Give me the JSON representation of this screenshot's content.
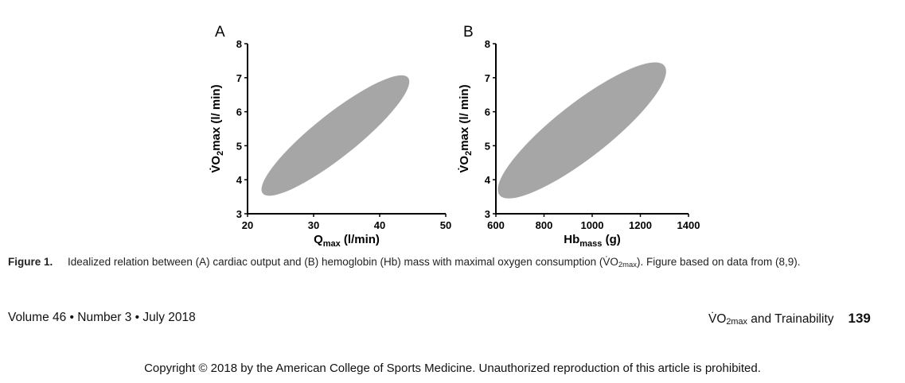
{
  "chart_data": [
    {
      "type": "area",
      "panel_label": "A",
      "shape": "ellipse",
      "fill": "#a6a6a6",
      "ylabel": "V̇O2max (l/ min)",
      "ylabel_parts": {
        "v": "V̇O",
        "sub": "2",
        "rest": "max (l/ min)"
      },
      "xlabel_parts": {
        "main": "Q",
        "sub": "max",
        "rest": " (l/min)"
      },
      "xlim": [
        20,
        50
      ],
      "ylim": [
        3,
        8
      ],
      "xticks": [
        20,
        30,
        40,
        50
      ],
      "yticks": [
        3,
        4,
        5,
        6,
        7,
        8
      ],
      "ellipse_major_axis_ends": [
        [
          22.3,
          3.6
        ],
        [
          44.3,
          7.0
        ]
      ],
      "grid": false
    },
    {
      "type": "area",
      "panel_label": "B",
      "shape": "ellipse",
      "fill": "#a6a6a6",
      "ylabel": "V̇O2max (l/ min)",
      "ylabel_parts": {
        "v": "V̇O",
        "sub": "2",
        "rest": "max (l/ min)"
      },
      "xlabel_parts": {
        "main": "Hb",
        "sub": "mass",
        "rest": " (g)"
      },
      "xlim": [
        600,
        1400
      ],
      "ylim": [
        3,
        8
      ],
      "xticks": [
        600,
        800,
        1000,
        1200,
        1400
      ],
      "yticks": [
        3,
        4,
        5,
        6,
        7,
        8
      ],
      "ellipse_major_axis_ends": [
        [
          615,
          3.55
        ],
        [
          1300,
          7.35
        ]
      ],
      "grid": false
    }
  ],
  "caption": {
    "label": "Figure 1.",
    "text_a": "Idealized relation between (A) cardiac output and (B) hemoglobin (Hb) mass with maximal oxygen consumption (V̇O",
    "text_sub": "2max",
    "text_b": "). Figure based on data from (8,9)."
  },
  "footer": {
    "journal": "Volume 46 • Number 3 • July 2018",
    "running_title_v": "V̇O",
    "running_title_sub": "2max",
    "running_title_rest": " and Trainability",
    "page_number": "139"
  },
  "copyright": "Copyright © 2018 by the American College of Sports Medicine. Unauthorized reproduction of this article is prohibited."
}
